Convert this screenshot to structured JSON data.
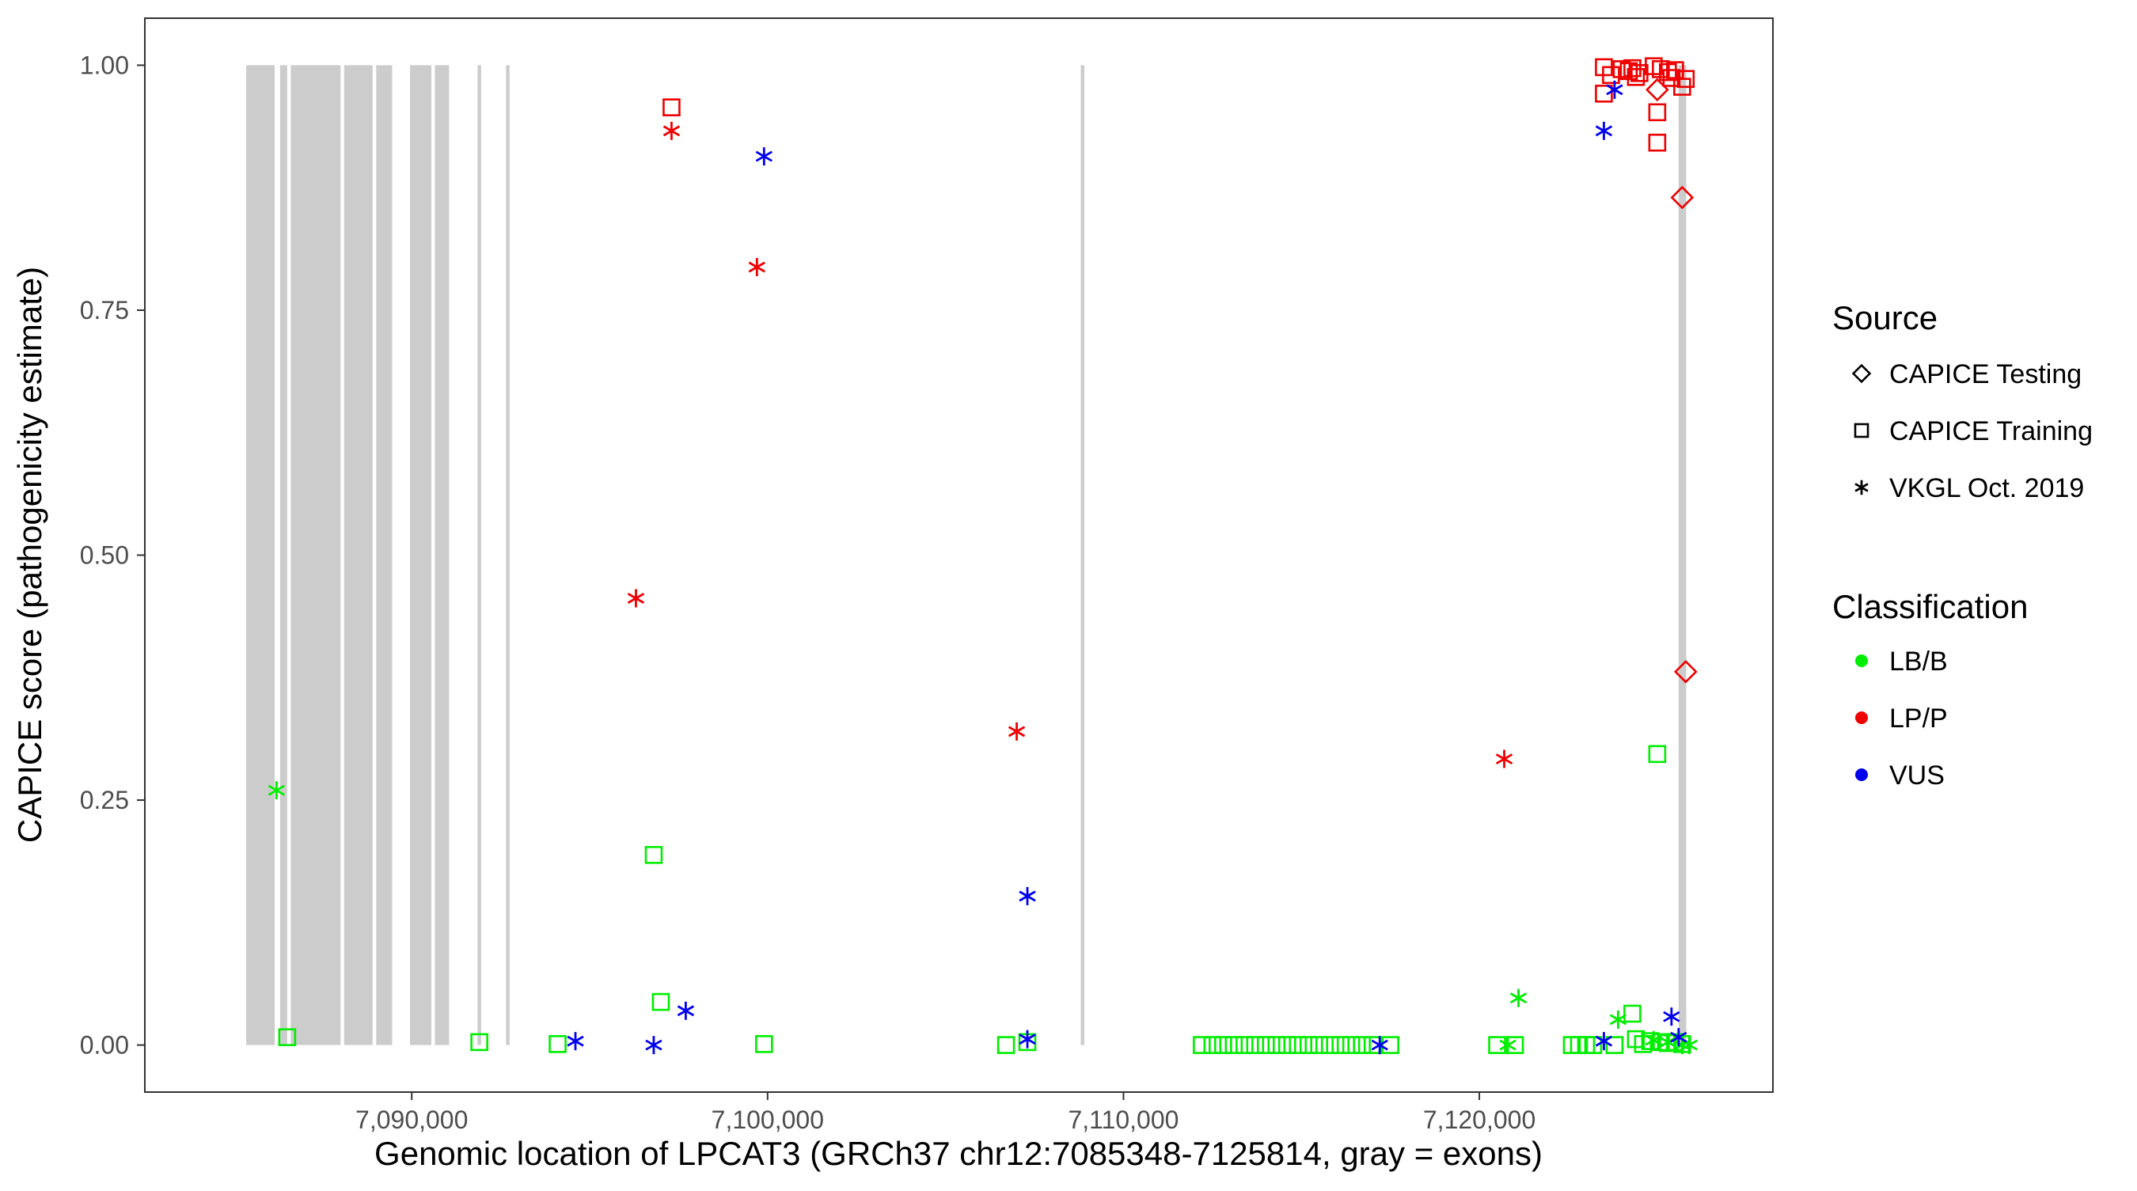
{
  "chart_data": {
    "type": "scatter",
    "xlabel": "Genomic location of LPCAT3 (GRCh37 chr12:7085348-7125814, gray = exons)",
    "ylabel": "CAPICE score (pathogenicity estimate)",
    "xlim": [
      7082500,
      7128250
    ],
    "ylim": [
      -0.048,
      1.048
    ],
    "x_ticks": [
      7090000,
      7100000,
      7110000,
      7120000
    ],
    "x_tick_labels": [
      "7,090,000",
      "7,100,000",
      "7,110,000",
      "7,120,000"
    ],
    "y_ticks": [
      0,
      0.25,
      0.5,
      0.75,
      1
    ],
    "y_tick_labels": [
      "0.00",
      "0.25",
      "0.50",
      "0.75",
      "1.00"
    ],
    "grid": false,
    "legend_placement": "right",
    "legend": {
      "source_title": "Source",
      "source_entries": [
        {
          "label": "CAPICE Testing",
          "shape": "diamond"
        },
        {
          "label": "CAPICE Training",
          "shape": "square"
        },
        {
          "label": "VKGL Oct. 2019",
          "shape": "asterisk"
        }
      ],
      "class_title": "Classification",
      "class_entries": [
        {
          "label": "LB/B",
          "color": "#00ee00"
        },
        {
          "label": "LP/P",
          "color": "#ee0000"
        },
        {
          "label": "VUS",
          "color": "#0000ee"
        }
      ]
    },
    "colors": {
      "LB/B": "#00ee00",
      "LP/P": "#ee0000",
      "VUS": "#0000ee",
      "exon": "#cccccc"
    },
    "exons": [
      {
        "start": 7085348,
        "end": 7086150
      },
      {
        "start": 7086300,
        "end": 7086500
      },
      {
        "start": 7086600,
        "end": 7088000
      },
      {
        "start": 7088100,
        "end": 7088900
      },
      {
        "start": 7089000,
        "end": 7089450
      },
      {
        "start": 7089950,
        "end": 7090550
      },
      {
        "start": 7090650,
        "end": 7091050
      },
      {
        "start": 7091850,
        "end": 7091950
      },
      {
        "start": 7092650,
        "end": 7092750
      },
      {
        "start": 7108800,
        "end": 7108900
      },
      {
        "start": 7125600,
        "end": 7125814
      }
    ],
    "series": [
      {
        "name": "LB/B",
        "source": "VKGL Oct. 2019",
        "points": [
          [
            7086200,
            0.26
          ],
          [
            7121100,
            0.048
          ],
          [
            7123900,
            0.026
          ],
          [
            7124900,
            0.005
          ],
          [
            7125300,
            0.003
          ],
          [
            7125700,
            0.0
          ],
          [
            7125900,
            0.0
          ],
          [
            7120800,
            0.0
          ]
        ]
      },
      {
        "name": "LB/B",
        "source": "CAPICE Training",
        "points": [
          [
            7086500,
            0.008
          ],
          [
            7091900,
            0.003
          ],
          [
            7094100,
            0.001
          ],
          [
            7096800,
            0.194
          ],
          [
            7097000,
            0.044
          ],
          [
            7099900,
            0.001
          ],
          [
            7106700,
            0.0
          ],
          [
            7107300,
            0.003
          ],
          [
            7112200,
            0.0
          ],
          [
            7112500,
            0.0
          ],
          [
            7112800,
            0.0
          ],
          [
            7113100,
            0.0
          ],
          [
            7113400,
            0.0
          ],
          [
            7113700,
            0.0
          ],
          [
            7114000,
            0.0
          ],
          [
            7114300,
            0.0
          ],
          [
            7114600,
            0.0
          ],
          [
            7114900,
            0.0
          ],
          [
            7115200,
            0.0
          ],
          [
            7115500,
            0.0
          ],
          [
            7115800,
            0.0
          ],
          [
            7116100,
            0.0
          ],
          [
            7116400,
            0.0
          ],
          [
            7116700,
            0.0
          ],
          [
            7117000,
            0.0
          ],
          [
            7117500,
            0.0
          ],
          [
            7120500,
            0.0
          ],
          [
            7121000,
            0.0
          ],
          [
            7122600,
            0.0
          ],
          [
            7122800,
            0.0
          ],
          [
            7123000,
            0.0
          ],
          [
            7123200,
            0.0
          ],
          [
            7123800,
            0.0
          ],
          [
            7124300,
            0.032
          ],
          [
            7124400,
            0.006
          ],
          [
            7124600,
            0.001
          ],
          [
            7124800,
            0.004
          ],
          [
            7125000,
            0.297
          ],
          [
            7125100,
            0.003
          ],
          [
            7125300,
            0.002
          ],
          [
            7125500,
            0.003
          ],
          [
            7125700,
            0.001
          ]
        ]
      },
      {
        "name": "LP/P",
        "source": "VKGL Oct. 2019",
        "points": [
          [
            7096300,
            0.456
          ],
          [
            7097300,
            0.933
          ],
          [
            7099700,
            0.794
          ],
          [
            7107000,
            0.32
          ],
          [
            7120700,
            0.292
          ]
        ]
      },
      {
        "name": "LP/P",
        "source": "CAPICE Training",
        "points": [
          [
            7097300,
            0.957
          ],
          [
            7123500,
            0.998
          ],
          [
            7123500,
            0.971
          ],
          [
            7123700,
            0.99
          ],
          [
            7124000,
            0.996
          ],
          [
            7124200,
            0.994
          ],
          [
            7124300,
            0.997
          ],
          [
            7124400,
            0.988
          ],
          [
            7124500,
            0.992
          ],
          [
            7124900,
            0.999
          ],
          [
            7125000,
            0.921
          ],
          [
            7125000,
            0.952
          ],
          [
            7125100,
            0.996
          ],
          [
            7125300,
            0.993
          ],
          [
            7125400,
            0.987
          ],
          [
            7125500,
            0.995
          ],
          [
            7125700,
            0.978
          ],
          [
            7125800,
            0.986
          ]
        ]
      },
      {
        "name": "LP/P",
        "source": "CAPICE Testing",
        "points": [
          [
            7125000,
            0.975
          ],
          [
            7125700,
            0.865
          ],
          [
            7125800,
            0.381
          ]
        ]
      },
      {
        "name": "VUS",
        "source": "VKGL Oct. 2019",
        "points": [
          [
            7094600,
            0.004
          ],
          [
            7096800,
            0.0
          ],
          [
            7097700,
            0.035
          ],
          [
            7099900,
            0.907
          ],
          [
            7107300,
            0.152
          ],
          [
            7107300,
            0.006
          ],
          [
            7117200,
            0.0
          ],
          [
            7123500,
            0.933
          ],
          [
            7123500,
            0.004
          ],
          [
            7123800,
            0.975
          ],
          [
            7125400,
            0.029
          ],
          [
            7125600,
            0.008
          ]
        ]
      }
    ]
  }
}
